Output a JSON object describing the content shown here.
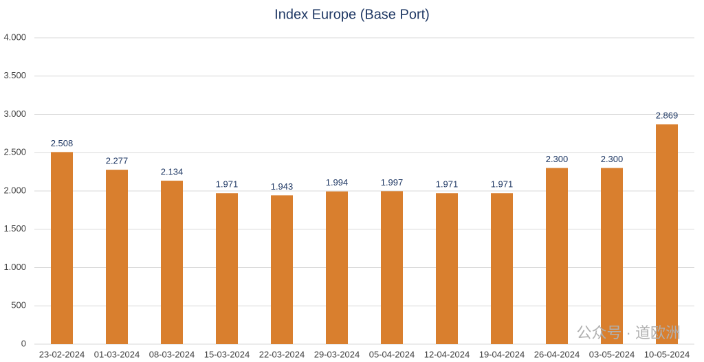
{
  "chart_data": {
    "type": "bar",
    "title": "Index Europe (Base Port)",
    "categories": [
      "23-02-2024",
      "01-03-2024",
      "08-03-2024",
      "15-03-2024",
      "22-03-2024",
      "29-03-2024",
      "05-04-2024",
      "12-04-2024",
      "19-04-2024",
      "26-04-2024",
      "03-05-2024",
      "10-05-2024"
    ],
    "values": [
      2508,
      2277,
      2134,
      1971,
      1943,
      1994,
      1997,
      1971,
      1971,
      2300,
      2300,
      2869
    ],
    "value_labels": [
      "2.508",
      "2.277",
      "2.134",
      "1.971",
      "1.943",
      "1.994",
      "1.997",
      "1.971",
      "1.971",
      "2.300",
      "2.300",
      "2.869"
    ],
    "color": "#d97f2e",
    "ylim": [
      0,
      4000
    ],
    "yticks": [
      0,
      500,
      {
        "value": 1000,
        "label": "1.000"
      },
      {
        "value": 1500,
        "label": "1.500"
      },
      {
        "value": 2000,
        "label": "2.000"
      },
      {
        "value": 2500,
        "label": "2.500"
      },
      {
        "value": 3000,
        "label": "3.000"
      },
      {
        "value": 3500,
        "label": "3.500"
      },
      {
        "value": 4000,
        "label": "4.000"
      }
    ],
    "grid": true,
    "watermark": "公众号 · 道欧洲"
  }
}
